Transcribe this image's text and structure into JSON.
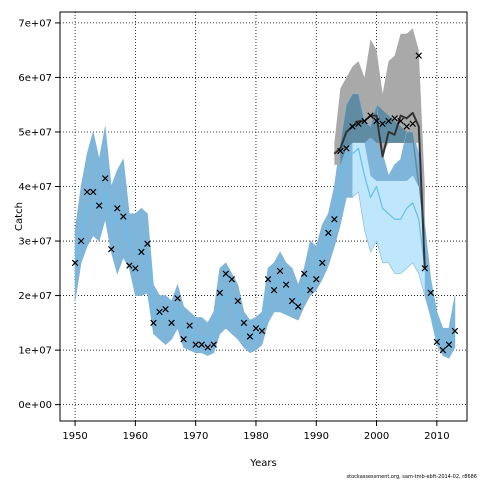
{
  "chart_data": {
    "type": "line",
    "xlabel": "Years",
    "ylabel": "Catch",
    "footer": "stockassessment.org, sam-tmb-ebft-2014-02, r8686",
    "xlim": [
      1947.5,
      2015
    ],
    "ylim": [
      -3000000,
      72000000
    ],
    "x_ticks": [
      1950,
      1960,
      1970,
      1980,
      1990,
      2000,
      2010
    ],
    "y_ticks": [
      0,
      10000000,
      20000000,
      30000000,
      40000000,
      50000000,
      60000000,
      70000000
    ],
    "y_tick_labels": [
      "0e+00",
      "1e+07",
      "2e+07",
      "3e+07",
      "4e+07",
      "5e+07",
      "6e+07",
      "7e+07"
    ],
    "grid": true,
    "colors": {
      "blue_band": "#7fb5d9",
      "grey_band": "#a9a9a9",
      "dark_band": "#5f8ba3",
      "light_band": "#bfe6fb",
      "blue_line": "#63c0ec",
      "black_line": "#333333",
      "grid": "#000000"
    },
    "blue_band": {
      "name": "estimate confidence band",
      "x": [
        1950,
        1951,
        1952,
        1953,
        1954,
        1955,
        1956,
        1957,
        1958,
        1959,
        1960,
        1961,
        1962,
        1963,
        1964,
        1965,
        1966,
        1967,
        1968,
        1969,
        1970,
        1971,
        1972,
        1973,
        1974,
        1975,
        1976,
        1977,
        1978,
        1979,
        1980,
        1981,
        1982,
        1983,
        1984,
        1985,
        1986,
        1987,
        1988,
        1989,
        1990,
        1991,
        1992,
        1993,
        1994,
        1995,
        1996,
        1997,
        1998,
        1999,
        2000,
        2001,
        2002,
        2003,
        2004,
        2005,
        2006,
        2007,
        2008,
        2009,
        2010,
        2011,
        2012,
        2013
      ],
      "upper": [
        32000000,
        40000000,
        46000000,
        50000000,
        45000000,
        51000000,
        40000000,
        43000000,
        45000000,
        35000000,
        35000000,
        36000000,
        35000000,
        22000000,
        20000000,
        20000000,
        19000000,
        22000000,
        18000000,
        17000000,
        16000000,
        16000000,
        15000000,
        17000000,
        25000000,
        26000000,
        24000000,
        22000000,
        17000000,
        15500000,
        16000000,
        17000000,
        25000000,
        26000000,
        28000000,
        26000000,
        25000000,
        22000000,
        25000000,
        30000000,
        29000000,
        33000000,
        35000000,
        40000000,
        48000000,
        55000000,
        57000000,
        57000000,
        52000000,
        51000000,
        55000000,
        46000000,
        42000000,
        44000000,
        45000000,
        50000000,
        50000000,
        46000000,
        33000000,
        23000000,
        17000000,
        14000000,
        14000000,
        20000000
      ],
      "lower": [
        19000000,
        26000000,
        29000000,
        31000000,
        30000000,
        34000000,
        28000000,
        24000000,
        27000000,
        25000000,
        20000000,
        20000000,
        20500000,
        13000000,
        12000000,
        11000000,
        12000000,
        14000000,
        10500000,
        10000000,
        9500000,
        9500000,
        9000000,
        9500000,
        13000000,
        14000000,
        13000000,
        12000000,
        10500000,
        9500000,
        10000000,
        11000000,
        15000000,
        17000000,
        17000000,
        16500000,
        16000000,
        15500000,
        18000000,
        20000000,
        21000000,
        23000000,
        25500000,
        29000000,
        33000000,
        38000000,
        38000000,
        39000000,
        32000000,
        28000000,
        30000000,
        26000000,
        26000000,
        24000000,
        24000000,
        25000000,
        26000000,
        24000000,
        20000000,
        16000000,
        11000000,
        9000000,
        8500000,
        10500000
      ]
    },
    "grey_band": {
      "name": "black line confidence band",
      "x": [
        1993,
        1994,
        1995,
        1996,
        1997,
        1998,
        1999,
        2000,
        2001,
        2002,
        2003,
        2004,
        2005,
        2006,
        2007,
        2008
      ],
      "upper": [
        48000000,
        58000000,
        60000000,
        62000000,
        63000000,
        60000000,
        67000000,
        65000000,
        57000000,
        63000000,
        64000000,
        68000000,
        68000000,
        69000000,
        65000000,
        40000000
      ],
      "lower": [
        44000000,
        44000000,
        47000000,
        48000000,
        48000000,
        48000000,
        49000000,
        48000000,
        46000000,
        48000000,
        48000000,
        48000000,
        48000000,
        48000000,
        48000000,
        30000000
      ]
    },
    "light_band": {
      "name": "upper range of estimate band",
      "x": [
        1996,
        1997,
        1998,
        1999,
        2000,
        2001,
        2002,
        2003,
        2004,
        2005,
        2006,
        2007,
        2008
      ],
      "upper": [
        48000000,
        48000000,
        48000000,
        42000000,
        41000000,
        41000000,
        41000000,
        41000000,
        41000000,
        41000000,
        42000000,
        40000000,
        30000000
      ],
      "lower": [
        38000000,
        39000000,
        32000000,
        28000000,
        30000000,
        26000000,
        26000000,
        24000000,
        24000000,
        25000000,
        26000000,
        24000000,
        20000000
      ]
    },
    "series": [
      {
        "name": "estimate",
        "style": "line",
        "x": [
          1950,
          1951,
          1952,
          1953,
          1954,
          1955,
          1956,
          1957,
          1958,
          1959,
          1960,
          1961,
          1962,
          1963,
          1964,
          1965,
          1966,
          1967,
          1968,
          1969,
          1970,
          1971,
          1972,
          1973,
          1974,
          1975,
          1976,
          1977,
          1978,
          1979,
          1980,
          1981,
          1982,
          1983,
          1984,
          1985,
          1986,
          1987,
          1988,
          1989,
          1990,
          1991,
          1992,
          1993,
          1994,
          1995,
          1996,
          1997,
          1998,
          1999,
          2000,
          2001,
          2002,
          2003,
          2004,
          2005,
          2006,
          2007,
          2008,
          2009,
          2010,
          2011,
          2012,
          2013
        ],
        "values": [
          25000000,
          32000000,
          36000000,
          37000000,
          36000000,
          39000000,
          33000000,
          34000000,
          35000000,
          29000000,
          28000000,
          28000000,
          27000000,
          17000000,
          16000000,
          15500000,
          15000000,
          18000000,
          14000000,
          13500000,
          12500000,
          12500000,
          12000000,
          12500000,
          18000000,
          20000000,
          19000000,
          17000000,
          13500000,
          12000000,
          12500000,
          13500000,
          20000000,
          22000000,
          23000000,
          21000000,
          20000000,
          19000000,
          21500000,
          25000000,
          25000000,
          28500000,
          30000000,
          34000000,
          40000000,
          46000000,
          46000000,
          47000000,
          42000000,
          38000000,
          40000000,
          36000000,
          35000000,
          34000000,
          34000000,
          36000000,
          37000000,
          34000000,
          25000000,
          20000000,
          13000000,
          11500000,
          11000000,
          13500000
        ]
      },
      {
        "name": "black line",
        "style": "line",
        "x": [
          1993,
          1994,
          1995,
          1996,
          1997,
          1998,
          1999,
          2000,
          2001,
          2002,
          2003,
          2004,
          2005,
          2006,
          2007,
          2008
        ],
        "values": [
          46000000,
          47000000,
          50000000,
          51000000,
          52000000,
          52000000,
          53000000,
          53000000,
          45500000,
          50000000,
          49500000,
          53000000,
          52500000,
          53500000,
          51000000,
          25000000
        ]
      },
      {
        "name": "observed",
        "style": "marker",
        "x": [
          1950,
          1951,
          1952,
          1953,
          1954,
          1955,
          1956,
          1957,
          1958,
          1959,
          1960,
          1961,
          1962,
          1963,
          1964,
          1965,
          1966,
          1967,
          1968,
          1969,
          1970,
          1971,
          1972,
          1973,
          1974,
          1975,
          1976,
          1977,
          1978,
          1979,
          1980,
          1981,
          1982,
          1983,
          1984,
          1985,
          1986,
          1987,
          1988,
          1989,
          1990,
          1991,
          1992,
          1993,
          1994,
          1995,
          1996,
          1997,
          1998,
          1999,
          2000,
          2001,
          2002,
          2003,
          2004,
          2005,
          2006,
          2007,
          2008,
          2009,
          2010,
          2011,
          2012,
          2013
        ],
        "values": [
          26000000,
          30000000,
          39000000,
          39000000,
          36500000,
          41500000,
          28500000,
          36000000,
          34500000,
          25500000,
          25000000,
          28000000,
          29500000,
          15000000,
          17000000,
          17500000,
          15000000,
          19500000,
          12000000,
          14500000,
          11000000,
          11000000,
          10500000,
          11000000,
          20500000,
          24000000,
          23000000,
          19000000,
          15000000,
          12500000,
          14000000,
          13500000,
          23000000,
          21000000,
          24500000,
          22000000,
          19000000,
          18000000,
          24000000,
          21000000,
          23000000,
          26000000,
          31500000,
          34000000,
          46500000,
          47000000,
          51000000,
          51500000,
          52000000,
          53000000,
          52000000,
          51500000,
          52000000,
          52500000,
          52000000,
          51000000,
          51500000,
          64000000,
          25000000,
          20500000,
          11500000,
          10000000,
          11000000,
          13500000
        ]
      }
    ]
  }
}
